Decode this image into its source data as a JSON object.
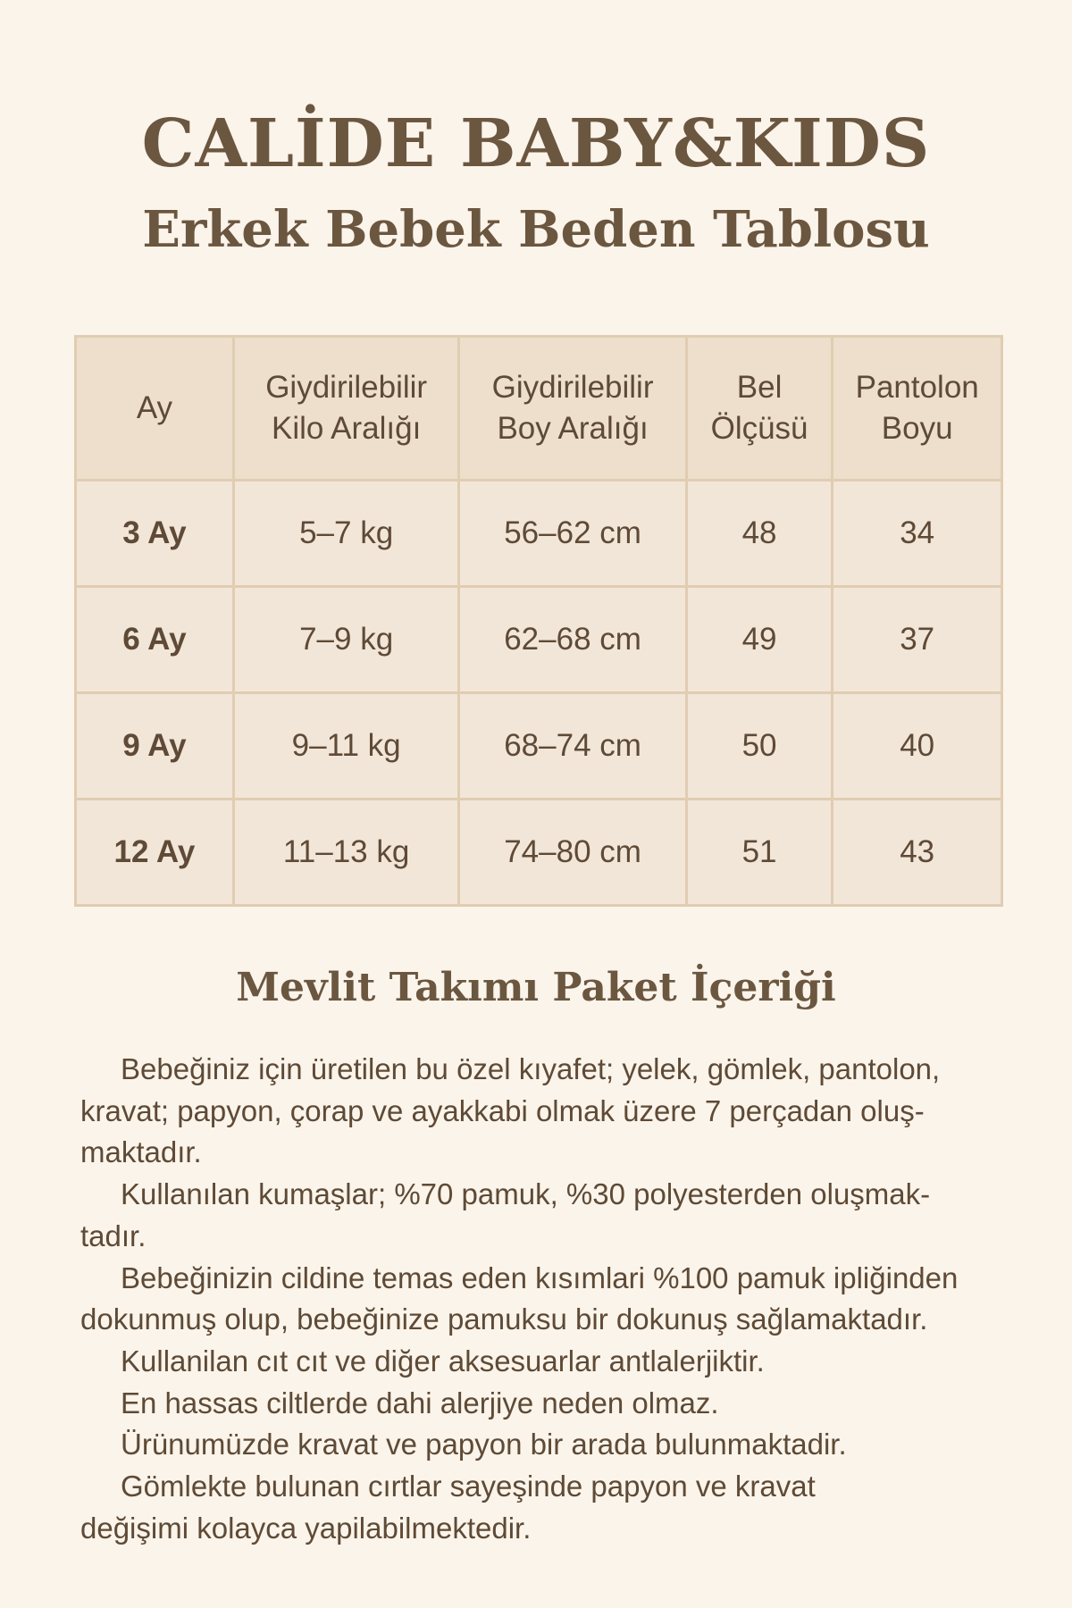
{
  "header": {
    "brand": "CALİDE BABY&KIDS",
    "subtitle": "Erkek Bebek Beden Tablosu"
  },
  "table": {
    "columns": [
      [
        "Ay",
        ""
      ],
      [
        "Giydirilebilir",
        "Kilo Aralığı"
      ],
      [
        "Giydirilebilir",
        "Boy Aralığı"
      ],
      [
        "Bel",
        "Ölçüsü"
      ],
      [
        "Pantolon",
        "Boyu"
      ]
    ],
    "rows": [
      [
        "3 Ay",
        "5–7 kg",
        "56–62 cm",
        "48",
        "34"
      ],
      [
        "6 Ay",
        "7–9 kg",
        "62–68 cm",
        "49",
        "37"
      ],
      [
        "9 Ay",
        "9–11 kg",
        "68–74 cm",
        "50",
        "40"
      ],
      [
        "12 Ay",
        "11–13 kg",
        "74–80 cm",
        "51",
        "43"
      ]
    ]
  },
  "section": {
    "title": "Mevlit Takımı Paket İçeriği",
    "lines": [
      "Bebeğiniz için üretilen bu özel kıyafet; yelek, gömlek, pantolon,",
      "kravat; papyon, çorap ve ayakkabi olmak üzere 7 perçadan oluş-",
      "maktadır.",
      "Kullanılan kumaşlar; %70 pamuk, %30 polyesterden oluşmak-",
      "tadır.",
      "Bebeğinizin cildine temas eden kısımlari %100 pamuk ipliğinden",
      "dokunmuş olup, bebeğinize pamuksu bir dokunuş sağlamaktadır.",
      "Kullanilan cıt cıt ve diğer aksesuarlar antlalerjiktir.",
      "En hassas ciltlerde dahi alerjiye neden olmaz.",
      "Ürünumüzde kravat ve papyon bir arada bulunmaktadir.",
      "Gömlekte bulunan cırtlar sayeşinde papyon ve kravat",
      "değişimi kolayca yapilabilmektedir."
    ]
  }
}
